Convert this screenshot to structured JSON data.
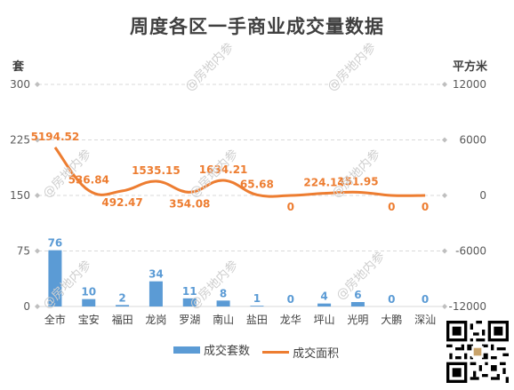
{
  "chart_data": {
    "type": "bar+line",
    "title": "周度各区一手商业成交量数据",
    "y_left_label": "套",
    "y_right_label": "平方米",
    "categories": [
      "全市",
      "宝安",
      "福田",
      "龙岗",
      "罗湖",
      "南山",
      "盐田",
      "龙华",
      "坪山",
      "光明",
      "大鹏",
      "深汕"
    ],
    "series": [
      {
        "name": "成交套数",
        "type": "bar",
        "axis": "left",
        "color": "#5b9bd5",
        "values": [
          76,
          10,
          2,
          34,
          11,
          8,
          1,
          0,
          4,
          6,
          0,
          0
        ],
        "labels": [
          "76",
          "10",
          "2",
          "34",
          "11",
          "8",
          "1",
          "0",
          "4",
          "6",
          "0",
          "0"
        ]
      },
      {
        "name": "成交面积",
        "type": "line",
        "axis": "right",
        "color": "#ed7d31",
        "values": [
          5194.52,
          536.84,
          492.47,
          1535.15,
          354.08,
          1634.21,
          65.68,
          0,
          224.14,
          351.95,
          0,
          0
        ],
        "labels": [
          "5194.52",
          "536.84",
          "492.47",
          "1535.15",
          "354.08",
          "1634.21",
          "65.68",
          "0",
          "224.14",
          "351.95",
          "0",
          "0"
        ]
      }
    ],
    "y_left_ticks": [
      "0",
      "75",
      "150",
      "225",
      "300"
    ],
    "y_left_range": [
      0,
      300
    ],
    "y_right_ticks": [
      "-12000",
      "-6000",
      "0",
      "6000",
      "12000"
    ],
    "y_right_range": [
      -12000,
      12000
    ],
    "grid": true,
    "legend_position": "bottom"
  },
  "watermark": "@房地内参"
}
